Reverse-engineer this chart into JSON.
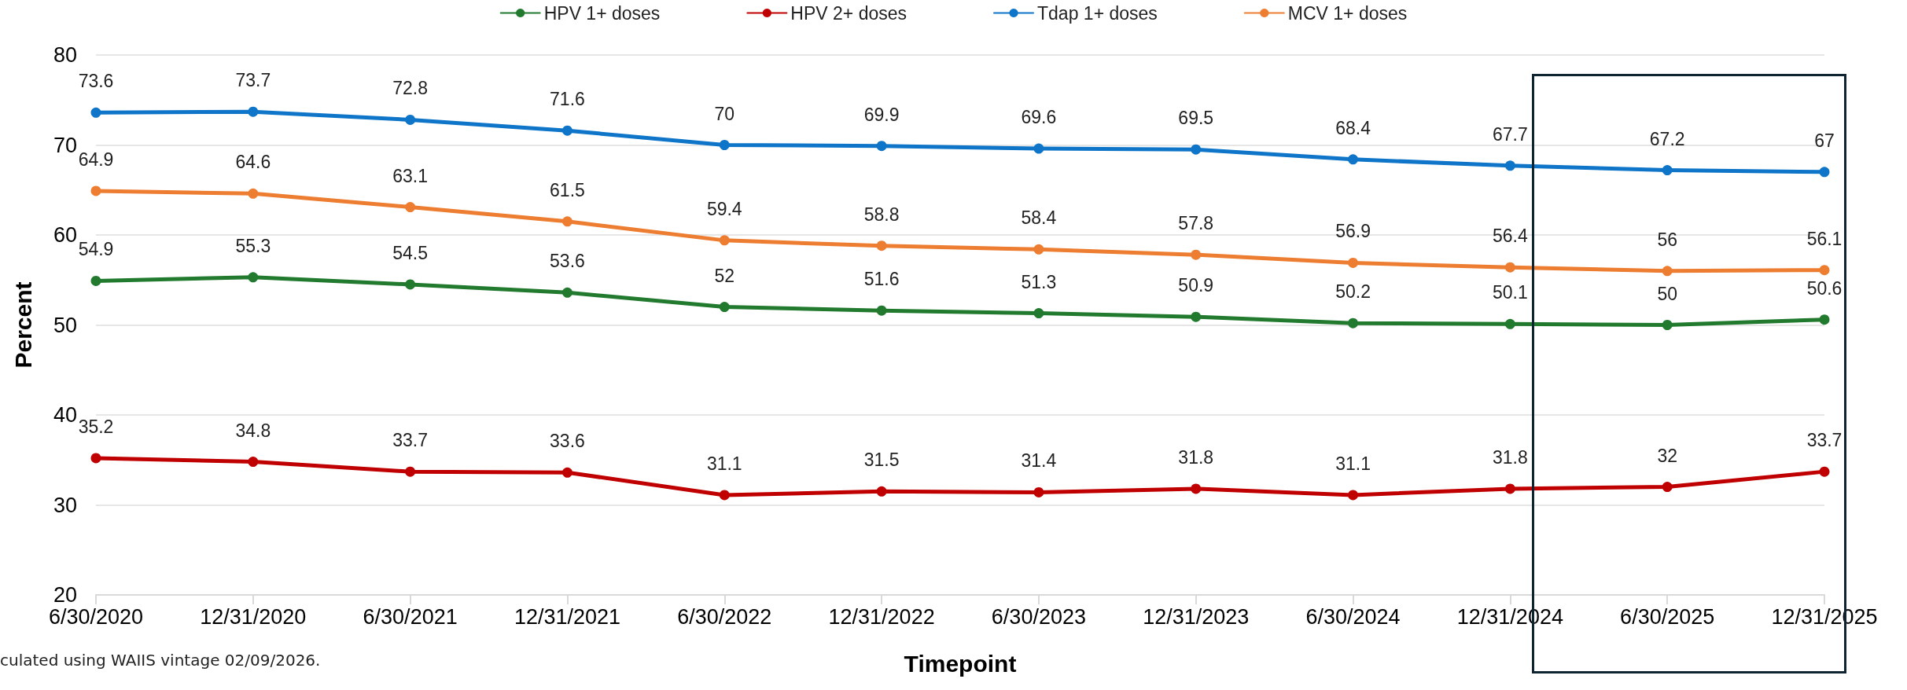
{
  "chart_data": {
    "type": "line",
    "xlabel": "Timepoint",
    "ylabel": "Percent",
    "categories": [
      "6/30/2020",
      "12/31/2020",
      "6/30/2021",
      "12/31/2021",
      "6/30/2022",
      "12/31/2022",
      "6/30/2023",
      "12/31/2023",
      "6/30/2024",
      "12/31/2024",
      "6/30/2025",
      "12/31/2025"
    ],
    "series": [
      {
        "name": "HPV 1+ doses",
        "color": "#217a2e",
        "values": [
          54.9,
          55.3,
          54.5,
          53.6,
          52,
          51.6,
          51.3,
          50.9,
          50.2,
          50.1,
          50,
          50.6
        ]
      },
      {
        "name": "HPV 2+ doses",
        "color": "#c00000",
        "values": [
          35.2,
          34.8,
          33.7,
          33.6,
          31.1,
          31.5,
          31.4,
          31.8,
          31.1,
          31.8,
          32,
          33.7
        ]
      },
      {
        "name": "Tdap 1+ doses",
        "color": "#0f75c8",
        "values": [
          73.6,
          73.7,
          72.8,
          71.6,
          70,
          69.9,
          69.6,
          69.5,
          68.4,
          67.7,
          67.2,
          67
        ]
      },
      {
        "name": "MCV 1+ doses",
        "color": "#ed7d31",
        "values": [
          64.9,
          64.6,
          63.1,
          61.5,
          59.4,
          58.8,
          58.4,
          57.8,
          56.9,
          56.4,
          56,
          56.1
        ]
      }
    ],
    "ylim": [
      20,
      80
    ],
    "yticks": [
      20,
      30,
      40,
      50,
      60,
      70,
      80
    ],
    "grid": "y",
    "legend": "top",
    "marker": "circle",
    "line_style": "solid",
    "data_labels": true,
    "annotations": [
      "culated using WAIIS vintage 02/09/2026."
    ]
  }
}
